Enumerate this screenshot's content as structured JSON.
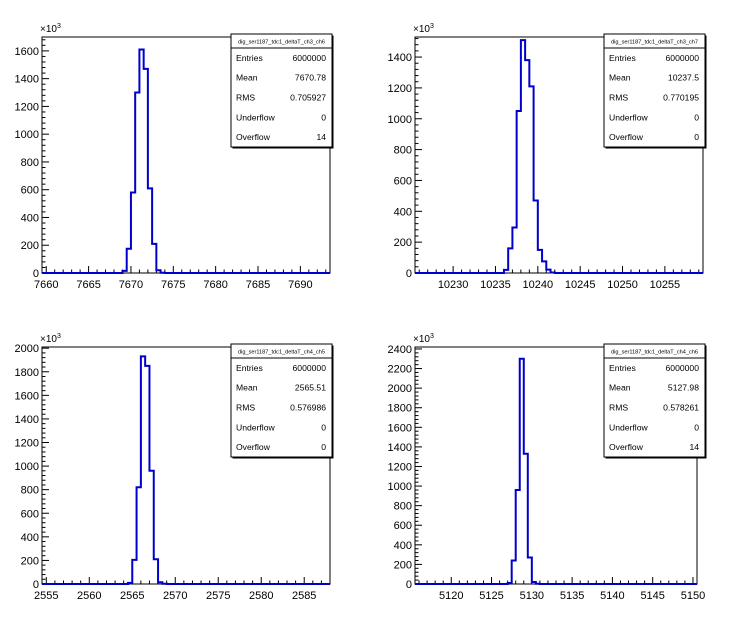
{
  "chart_data": [
    {
      "type": "bar",
      "style": "step-histogram",
      "line_color": "#0000cc",
      "hist_name": "dig_ser1187_tdc1_deltaT_ch3_ch6",
      "stats": [
        {
          "label": "Entries",
          "value": "6000000"
        },
        {
          "label": "Mean",
          "value": "7670.78"
        },
        {
          "label": "RMS",
          "value": "0.705927"
        },
        {
          "label": "Underflow",
          "value": "0"
        },
        {
          "label": "Overflow",
          "value": "14"
        }
      ],
      "y_exponent": "×10",
      "y_exponent_power": "3",
      "xlim": [
        7659.5,
        7693.5
      ],
      "ylim": [
        0,
        1700
      ],
      "x_ticks": [
        7660,
        7665,
        7670,
        7675,
        7680,
        7685,
        7690
      ],
      "y_ticks": [
        0,
        200,
        400,
        600,
        800,
        1000,
        1200,
        1400,
        1600
      ],
      "bins": {
        "start": 7659.5,
        "width": 0.5,
        "values": [
          0,
          0,
          0,
          0,
          0,
          0,
          0,
          0,
          0,
          0,
          0,
          0,
          0,
          0,
          0,
          0,
          0,
          0,
          0,
          15,
          175,
          580,
          1300,
          1610,
          1470,
          610,
          210,
          20,
          2,
          0
        ]
      }
    },
    {
      "type": "bar",
      "style": "step-histogram",
      "line_color": "#0000cc",
      "hist_name": "dig_ser1187_tdc1_deltaT_ch3_ch7",
      "stats": [
        {
          "label": "Entries",
          "value": "6000000"
        },
        {
          "label": "Mean",
          "value": "10237.5"
        },
        {
          "label": "RMS",
          "value": "0.770195"
        },
        {
          "label": "Underflow",
          "value": "0"
        },
        {
          "label": "Overflow",
          "value": "0"
        }
      ],
      "y_exponent": "×10",
      "y_exponent_power": "3",
      "xlim": [
        10225.5,
        10259.5
      ],
      "ylim": [
        0,
        1530
      ],
      "x_ticks": [
        10230,
        10235,
        10240,
        10245,
        10250,
        10255
      ],
      "y_ticks": [
        0,
        200,
        400,
        600,
        800,
        1000,
        1200,
        1400
      ],
      "bins": {
        "start": 10225.5,
        "width": 0.5,
        "values": [
          0,
          0,
          0,
          0,
          0,
          0,
          0,
          0,
          0,
          0,
          0,
          0,
          0,
          0,
          0,
          0,
          0,
          0,
          0,
          0,
          0,
          20,
          160,
          295,
          1050,
          1510,
          1380,
          1210,
          470,
          150,
          75,
          22,
          3,
          0
        ]
      }
    },
    {
      "type": "bar",
      "style": "step-histogram",
      "line_color": "#0000cc",
      "hist_name": "dig_ser1187_tdc1_deltaT_ch4_ch5",
      "stats": [
        {
          "label": "Entries",
          "value": "6000000"
        },
        {
          "label": "Mean",
          "value": "2565.51"
        },
        {
          "label": "RMS",
          "value": "0.576986"
        },
        {
          "label": "Underflow",
          "value": "0"
        },
        {
          "label": "Overflow",
          "value": "0"
        }
      ],
      "y_exponent": "×10",
      "y_exponent_power": "3",
      "xlim": [
        2554.5,
        2588.0
      ],
      "ylim": [
        0,
        2010
      ],
      "x_ticks": [
        2555,
        2560,
        2565,
        2570,
        2575,
        2580,
        2585
      ],
      "y_ticks": [
        0,
        200,
        400,
        600,
        800,
        1000,
        1200,
        1400,
        1600,
        1800,
        2000
      ],
      "bins": {
        "start": 2554.5,
        "width": 0.5,
        "values": [
          0,
          0,
          0,
          0,
          0,
          0,
          0,
          0,
          0,
          0,
          0,
          0,
          0,
          0,
          0,
          0,
          0,
          0,
          0,
          0,
          10,
          205,
          820,
          1930,
          1850,
          960,
          210,
          15,
          2,
          0
        ]
      }
    },
    {
      "type": "bar",
      "style": "step-histogram",
      "line_color": "#0000cc",
      "hist_name": "dig_ser1187_tdc1_deltaT_ch4_ch6",
      "stats": [
        {
          "label": "Entries",
          "value": "6000000"
        },
        {
          "label": "Mean",
          "value": "5127.98"
        },
        {
          "label": "RMS",
          "value": "0.578261"
        },
        {
          "label": "Underflow",
          "value": "0"
        },
        {
          "label": "Overflow",
          "value": "14"
        }
      ],
      "y_exponent": "×10",
      "y_exponent_power": "3",
      "xlim": [
        5115.5,
        5150.5
      ],
      "ylim": [
        0,
        2420
      ],
      "x_ticks": [
        5120,
        5125,
        5130,
        5135,
        5140,
        5145,
        5150
      ],
      "y_ticks": [
        0,
        200,
        400,
        600,
        800,
        1000,
        1200,
        1400,
        1600,
        1800,
        2000,
        2200,
        2400
      ],
      "bins": {
        "start": 5115.5,
        "width": 0.5,
        "values": [
          0,
          0,
          0,
          0,
          0,
          0,
          0,
          0,
          0,
          0,
          0,
          0,
          0,
          0,
          0,
          0,
          0,
          0,
          0,
          0,
          0,
          0,
          0,
          10,
          240,
          960,
          2300,
          1330,
          270,
          20,
          2,
          0
        ]
      }
    }
  ]
}
